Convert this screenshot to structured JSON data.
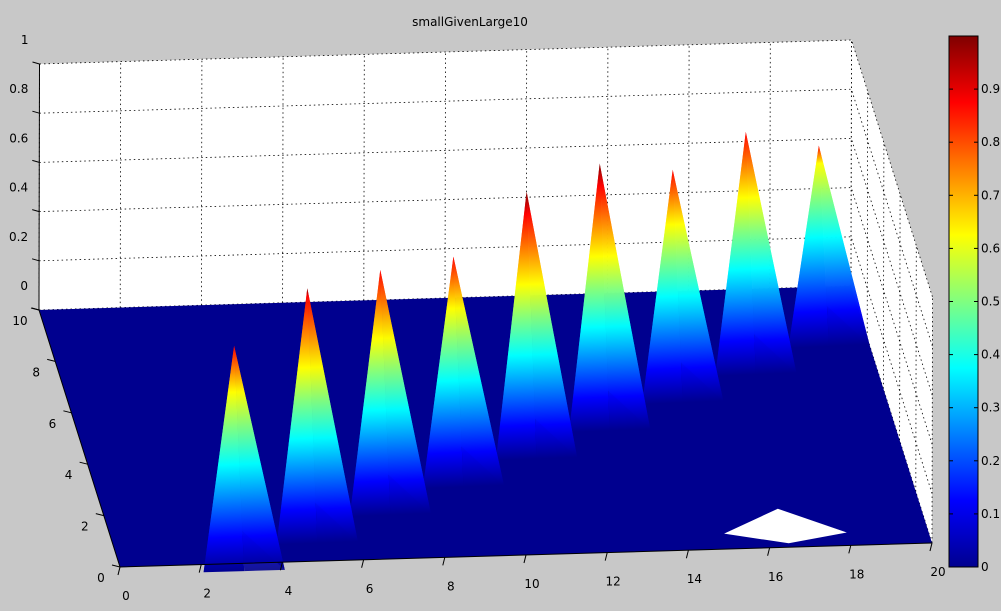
{
  "chart_data": {
    "type": "surface3d",
    "title": "smallGivenLarge10",
    "xlabel": "",
    "ylabel": "",
    "zlabel": "",
    "xlim": [
      0,
      20
    ],
    "ylim": [
      0,
      10
    ],
    "zlim": [
      0,
      1
    ],
    "x_ticks": [
      "0",
      "2",
      "4",
      "6",
      "8",
      "10",
      "12",
      "14",
      "16",
      "18",
      "20"
    ],
    "y_ticks": [
      "0",
      "2",
      "4",
      "6",
      "8",
      "10"
    ],
    "z_ticks": [
      "0",
      "0.2",
      "0.4",
      "0.6",
      "0.8",
      "1"
    ],
    "colorbar_ticks": [
      "0",
      "0.1",
      "0.2",
      "0.3",
      "0.4",
      "0.5",
      "0.6",
      "0.7",
      "0.8",
      "0.9"
    ],
    "colormap": "jet",
    "grid": "on",
    "peaks": [
      {
        "x": 3,
        "y": 1,
        "z": 0.78
      },
      {
        "x": 5,
        "y": 2,
        "z": 0.9
      },
      {
        "x": 7,
        "y": 3,
        "z": 0.86
      },
      {
        "x": 9,
        "y": 4,
        "z": 0.8
      },
      {
        "x": 11,
        "y": 5,
        "z": 0.95
      },
      {
        "x": 13,
        "y": 6,
        "z": 0.95
      },
      {
        "x": 15,
        "y": 7,
        "z": 0.81
      },
      {
        "x": 17,
        "y": 8,
        "z": 0.85
      },
      {
        "x": 19,
        "y": 9,
        "z": 0.68
      }
    ],
    "colors": {
      "background": "#c8c8c8",
      "pane": "#ffffff",
      "floor": "#00008f"
    }
  }
}
